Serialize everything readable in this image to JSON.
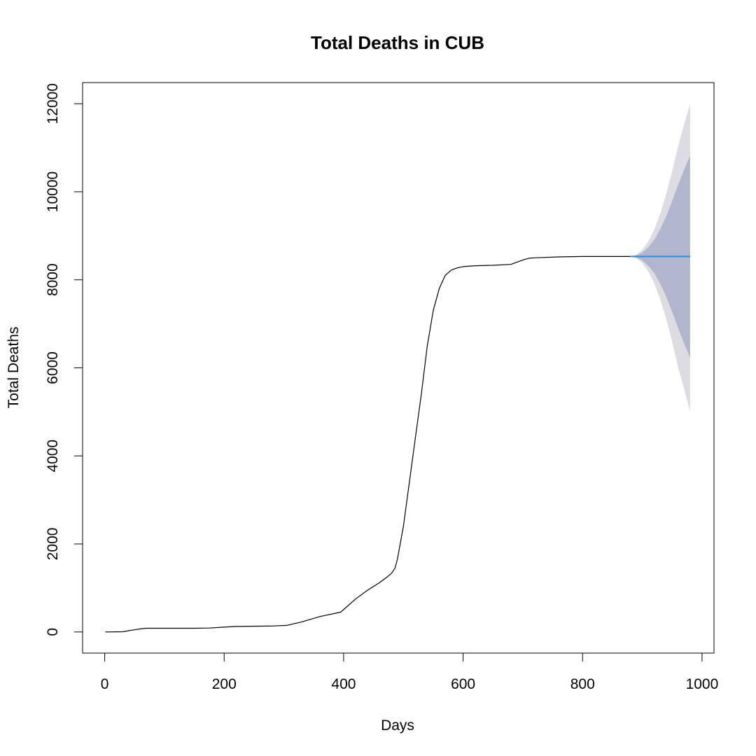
{
  "chart_data": {
    "type": "line",
    "title": "Total Deaths in CUB",
    "xlabel": "Days",
    "ylabel": "Total Deaths",
    "xlim": [
      -37,
      1020
    ],
    "ylim": [
      -480,
      12480
    ],
    "grid": false,
    "legend": "none",
    "x_ticks": [
      0,
      200,
      400,
      600,
      800,
      1000
    ],
    "y_ticks": [
      0,
      2000,
      4000,
      6000,
      8000,
      10000,
      12000
    ],
    "x_tick_labels": [
      "0",
      "200",
      "400",
      "600",
      "800",
      "1000"
    ],
    "y_tick_labels": [
      "0",
      "2000",
      "4000",
      "6000",
      "8000",
      "10000",
      "12000"
    ],
    "series": [
      {
        "kind": "observed",
        "color": "#000000",
        "x": [
          1,
          30,
          45,
          60,
          70,
          100,
          150,
          175,
          200,
          220,
          250,
          280,
          305,
          330,
          360,
          395,
          420,
          440,
          460,
          470,
          480,
          486,
          490,
          500,
          510,
          520,
          530,
          540,
          550,
          560,
          570,
          580,
          590,
          600,
          620,
          650,
          680,
          690,
          700,
          710,
          720,
          760,
          800,
          850,
          880
        ],
        "y": [
          0,
          5,
          40,
          70,
          85,
          85,
          85,
          90,
          110,
          125,
          130,
          135,
          150,
          230,
          350,
          450,
          750,
          950,
          1120,
          1220,
          1330,
          1450,
          1650,
          2400,
          3400,
          4400,
          5400,
          6500,
          7300,
          7800,
          8100,
          8220,
          8270,
          8300,
          8320,
          8330,
          8350,
          8400,
          8450,
          8490,
          8500,
          8520,
          8530,
          8530,
          8530
        ]
      },
      {
        "kind": "forecast",
        "color": "#2b8fe0",
        "x": [
          880,
          980
        ],
        "y": [
          8530,
          8530
        ]
      }
    ],
    "forecast_intervals": [
      {
        "level": "95%",
        "color": "#dcdce2",
        "x": [
          880,
          890,
          900,
          910,
          920,
          930,
          940,
          950,
          960,
          970,
          980
        ],
        "lower": [
          8530,
          8490,
          8380,
          8190,
          7920,
          7560,
          7110,
          6590,
          6000,
          5530,
          5000
        ],
        "upper": [
          8530,
          8570,
          8680,
          8870,
          9140,
          9500,
          9950,
          10470,
          11040,
          11530,
          12000
        ]
      },
      {
        "level": "80%",
        "color": "#b1b5ce",
        "x": [
          880,
          890,
          900,
          910,
          920,
          930,
          940,
          950,
          960,
          970,
          980
        ],
        "lower": [
          8530,
          8505,
          8440,
          8320,
          8150,
          7910,
          7620,
          7270,
          6900,
          6550,
          6230
        ],
        "upper": [
          8530,
          8555,
          8620,
          8740,
          8910,
          9150,
          9440,
          9790,
          10160,
          10500,
          10820
        ]
      }
    ]
  }
}
